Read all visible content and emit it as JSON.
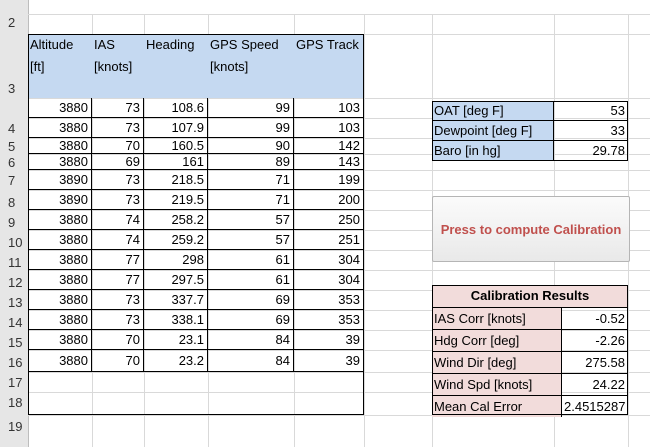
{
  "sheet": {
    "row_numbers": [
      "2",
      "3",
      "4",
      "5",
      "6",
      "7",
      "8",
      "9",
      "10",
      "11",
      "12",
      "13",
      "14",
      "15",
      "16",
      "17",
      "18",
      "19"
    ],
    "headers": [
      "Altitude [ft]",
      "IAS [knots]",
      "Heading",
      "GPS Speed [knots]",
      "GPS Track"
    ],
    "rows": [
      [
        "3880",
        "73",
        "108.6",
        "99",
        "103"
      ],
      [
        "3880",
        "73",
        "107.9",
        "99",
        "103"
      ],
      [
        "3880",
        "70",
        "160.5",
        "90",
        "142"
      ],
      [
        "3880",
        "69",
        "161",
        "89",
        "143"
      ],
      [
        "3890",
        "73",
        "218.5",
        "71",
        "199"
      ],
      [
        "3890",
        "73",
        "219.5",
        "71",
        "200"
      ],
      [
        "3880",
        "74",
        "258.2",
        "57",
        "250"
      ],
      [
        "3880",
        "74",
        "259.2",
        "57",
        "251"
      ],
      [
        "3880",
        "77",
        "298",
        "61",
        "304"
      ],
      [
        "3880",
        "77",
        "297.5",
        "61",
        "304"
      ],
      [
        "3880",
        "73",
        "337.7",
        "69",
        "353"
      ],
      [
        "3880",
        "73",
        "338.1",
        "69",
        "353"
      ],
      [
        "3880",
        "70",
        "23.1",
        "84",
        "39"
      ],
      [
        "3880",
        "70",
        "23.2",
        "84",
        "39"
      ]
    ]
  },
  "conditions": [
    {
      "label": "OAT   [deg F]",
      "value": "53"
    },
    {
      "label": "Dewpoint [deg F]",
      "value": "33"
    },
    {
      "label": "Baro     [in hg]",
      "value": "29.78"
    }
  ],
  "compute_button": {
    "label": "Press to compute Calibration"
  },
  "results": {
    "title": "Calibration Results",
    "items": [
      {
        "label": "IAS Corr [knots]",
        "value": "-0.52"
      },
      {
        "label": "Hdg Corr [deg]",
        "value": "-2.26"
      },
      {
        "label": "Wind Dir [deg]",
        "value": "275.58"
      },
      {
        "label": "Wind Spd [knots]",
        "value": "24.22"
      },
      {
        "label": "Mean Cal Error",
        "value": "2.4515287"
      }
    ]
  }
}
